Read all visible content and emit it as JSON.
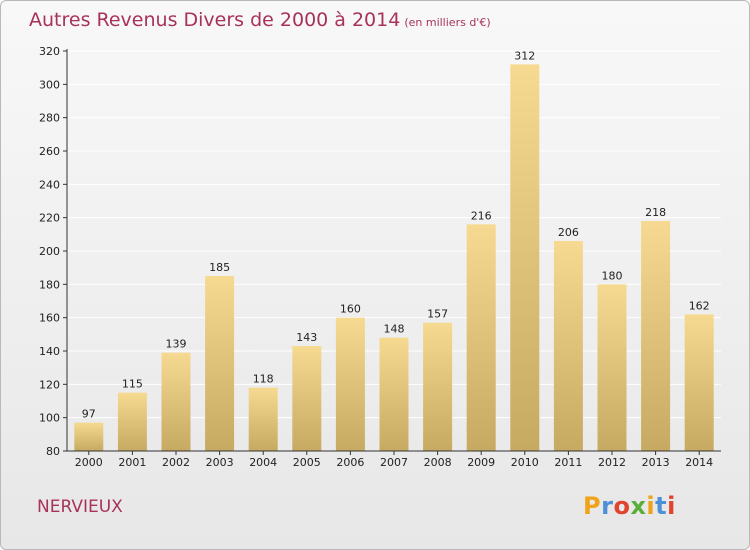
{
  "header": {
    "title": "Autres Revenus Divers de 2000 à 2014",
    "subtitle": "(en milliers d'€)"
  },
  "footer": {
    "commune": "NERVIEUX",
    "brand": "Proxiti",
    "brand_colors": [
      "#f0a319",
      "#4d8fd8",
      "#e2432e",
      "#5aae3a",
      "#f0a319",
      "#4d8fd8",
      "#e2432e"
    ]
  },
  "colors": {
    "title": "#a8325a",
    "bar_top": "#f6da92",
    "bar_bottom": "#c6aa62",
    "axis": "#333333",
    "grid": "#ffffff"
  },
  "chart_data": {
    "type": "bar",
    "categories": [
      "2000",
      "2001",
      "2002",
      "2003",
      "2004",
      "2005",
      "2006",
      "2007",
      "2008",
      "2009",
      "2010",
      "2011",
      "2012",
      "2013",
      "2014"
    ],
    "values": [
      97,
      115,
      139,
      185,
      118,
      143,
      160,
      148,
      157,
      216,
      312,
      206,
      180,
      218,
      162
    ],
    "title": "Autres Revenus Divers de 2000 à 2014",
    "subtitle": "(en milliers d'€)",
    "ylim": [
      80,
      320
    ],
    "yticks": [
      80,
      100,
      120,
      140,
      160,
      180,
      200,
      220,
      240,
      260,
      280,
      300,
      320
    ],
    "grid": true,
    "show_data_labels": true
  }
}
